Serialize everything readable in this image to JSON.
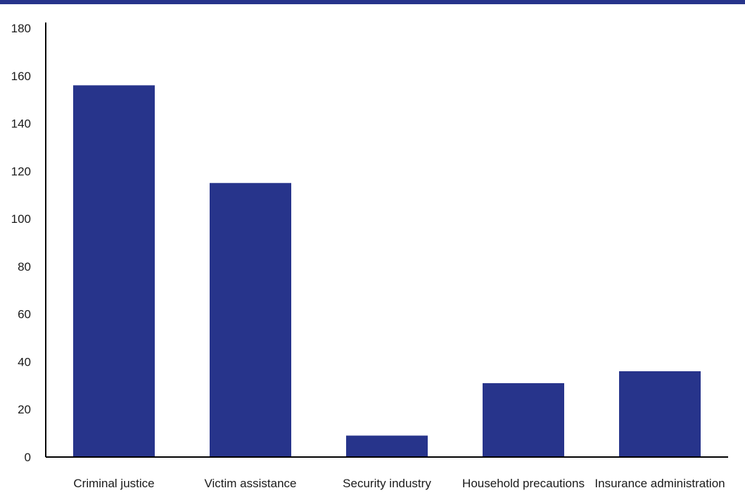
{
  "colors": {
    "accent": "#27348b",
    "axis": "#000000",
    "text": "#1a1a1a",
    "background": "#ffffff"
  },
  "chart_data": {
    "type": "bar",
    "title": "",
    "xlabel": "",
    "ylabel": "",
    "categories": [
      "Criminal justice",
      "Victim assistance",
      "Security industry",
      "Household precautions",
      "Insurance administration"
    ],
    "values": [
      156,
      115,
      9,
      31,
      36
    ],
    "ylim": [
      0,
      180
    ],
    "yticks": [
      0,
      20,
      40,
      60,
      80,
      100,
      120,
      140,
      160,
      180
    ],
    "grid": false,
    "legend": "none"
  }
}
